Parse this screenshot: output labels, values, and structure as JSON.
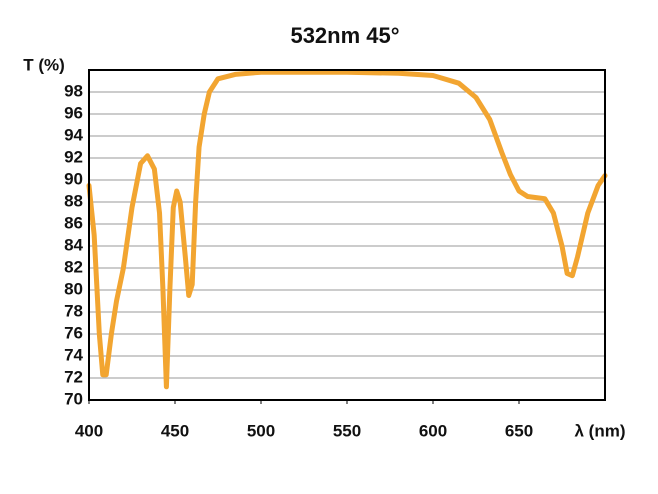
{
  "chart_data": {
    "type": "line",
    "title": "532nm 45°",
    "y_label": "T (%)",
    "x_label": "λ (nm)",
    "x": [
      400,
      403,
      406,
      408,
      410,
      413,
      416,
      420,
      425,
      430,
      434,
      438,
      441,
      443,
      445,
      447,
      449,
      451,
      453,
      456,
      458,
      460,
      462,
      464,
      467,
      470,
      475,
      485,
      500,
      550,
      580,
      600,
      615,
      625,
      633,
      640,
      645,
      650,
      655,
      660,
      665,
      670,
      675,
      678,
      681,
      684,
      690,
      696,
      700
    ],
    "series": [
      {
        "name": "T",
        "color": "#f2a531",
        "values": [
          89.5,
          85,
          76,
          72.3,
          72.3,
          76,
          79,
          82,
          87.5,
          91.5,
          92.2,
          91,
          87,
          80,
          71.2,
          80,
          87.5,
          89,
          88,
          83,
          79.5,
          80.5,
          88,
          93,
          96,
          98,
          99.2,
          99.6,
          99.8,
          99.8,
          99.7,
          99.5,
          98.8,
          97.5,
          95.5,
          92.5,
          90.5,
          89,
          88.5,
          88.4,
          88.3,
          87,
          84,
          81.5,
          81.3,
          83,
          87,
          89.5,
          90.4
        ]
      }
    ],
    "xlim": [
      400,
      700
    ],
    "xticks": [
      400,
      450,
      500,
      550,
      600,
      650
    ],
    "ylim": [
      70,
      100
    ],
    "yticks": [
      70,
      72,
      74,
      76,
      78,
      80,
      82,
      84,
      86,
      88,
      90,
      92,
      94,
      96,
      98
    ],
    "grid": true
  }
}
